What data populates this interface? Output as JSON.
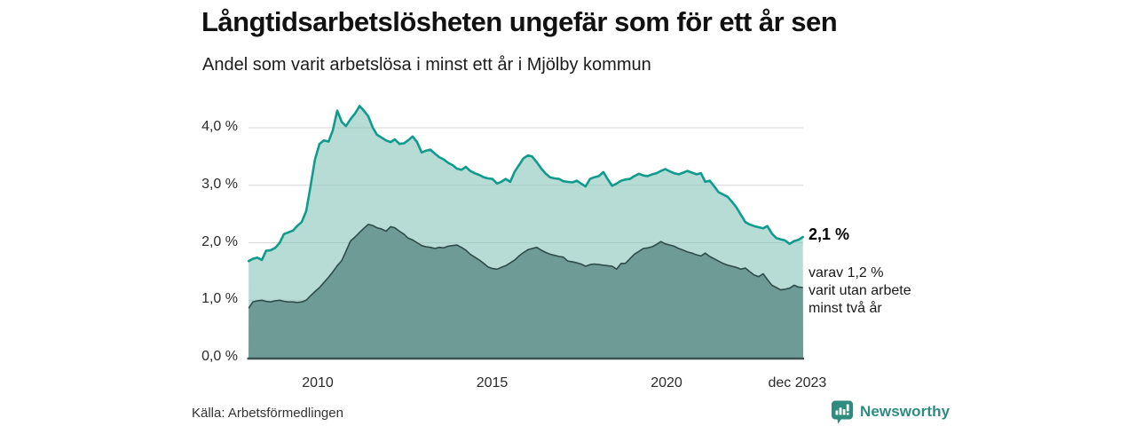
{
  "header": {
    "title": "Långtidsarbetslösheten ungefär som för ett år sen",
    "subtitle": "Andel som varit arbetslösa i minst ett år i Mjölby kommun"
  },
  "annotations": {
    "end_total": "2,1 %",
    "end_sub_lines": [
      "varav 1,2 %",
      "varit utan arbete",
      "minst två år"
    ]
  },
  "source": {
    "label": "Källa: Arbetsförmedlingen"
  },
  "branding": {
    "name": "Newsworthy",
    "icon": "bar-chart-speech-bubble-icon"
  },
  "colors": {
    "accent_line": "#0f9b8e",
    "light_fill": "#8bc7bd",
    "light_fill_opacity": 0.62,
    "dark_fill": "#6e9b96",
    "dark_line": "#2e4c4a",
    "axis": "#3c5350",
    "grid": "#d5d5d5",
    "brand": "#2e8c7f"
  },
  "chart_data": {
    "type": "area",
    "title": "Långtidsarbetslösheten ungefär som för ett år sen",
    "subtitle": "Andel som varit arbetslösa i minst ett år i Mjölby kommun",
    "xlabel": "",
    "ylabel": "",
    "unit": "%",
    "xlim": [
      2008.02,
      2023.92
    ],
    "ylim": [
      0,
      4.5
    ],
    "grid": "horizontal",
    "legend_position": "none",
    "xticks": [
      {
        "year": 2010,
        "label": "2010"
      },
      {
        "year": 2015,
        "label": "2015"
      },
      {
        "year": 2020,
        "label": "2020"
      },
      {
        "year": 2023.75,
        "label": "dec 2023"
      }
    ],
    "yticks": [
      {
        "value": 4,
        "label": "4,0 %"
      },
      {
        "value": 3,
        "label": "3,0 %"
      },
      {
        "value": 2,
        "label": "2,0 %"
      },
      {
        "value": 1,
        "label": "1,0 %"
      },
      {
        "value": 0,
        "label": "0,0 %"
      }
    ],
    "x": [
      2008.02,
      2008.14,
      2008.27,
      2008.4,
      2008.52,
      2008.65,
      2008.78,
      2008.91,
      2009.03,
      2009.16,
      2009.29,
      2009.41,
      2009.54,
      2009.67,
      2009.8,
      2009.92,
      2010.05,
      2010.18,
      2010.31,
      2010.43,
      2010.56,
      2010.69,
      2010.81,
      2010.94,
      2011.07,
      2011.2,
      2011.32,
      2011.45,
      2011.58,
      2011.7,
      2011.83,
      2011.96,
      2012.09,
      2012.21,
      2012.34,
      2012.47,
      2012.59,
      2012.72,
      2012.85,
      2012.98,
      2013.1,
      2013.23,
      2013.36,
      2013.48,
      2013.61,
      2013.74,
      2013.87,
      2013.99,
      2014.12,
      2014.25,
      2014.37,
      2014.5,
      2014.63,
      2014.76,
      2014.88,
      2015.01,
      2015.14,
      2015.26,
      2015.39,
      2015.52,
      2015.65,
      2015.77,
      2015.9,
      2016.03,
      2016.15,
      2016.28,
      2016.41,
      2016.54,
      2016.66,
      2016.79,
      2016.92,
      2017.04,
      2017.17,
      2017.3,
      2017.43,
      2017.55,
      2017.68,
      2017.81,
      2017.93,
      2018.06,
      2018.19,
      2018.32,
      2018.44,
      2018.57,
      2018.7,
      2018.82,
      2018.95,
      2019.08,
      2019.21,
      2019.33,
      2019.46,
      2019.59,
      2019.71,
      2019.84,
      2019.97,
      2020.1,
      2020.22,
      2020.35,
      2020.48,
      2020.6,
      2020.73,
      2020.86,
      2020.99,
      2021.11,
      2021.24,
      2021.37,
      2021.49,
      2021.62,
      2021.75,
      2021.88,
      2022.0,
      2022.13,
      2022.26,
      2022.38,
      2022.51,
      2022.64,
      2022.77,
      2022.89,
      2023.02,
      2023.15,
      2023.27,
      2023.4,
      2023.53,
      2023.66,
      2023.78,
      2023.91
    ],
    "series": [
      {
        "name": "Arbetslösa minst ett år",
        "end_label": "2,1 %",
        "values": [
          1.68,
          1.72,
          1.74,
          1.7,
          1.86,
          1.87,
          1.91,
          2.0,
          2.15,
          2.18,
          2.21,
          2.29,
          2.36,
          2.55,
          3.0,
          3.45,
          3.72,
          3.78,
          3.76,
          3.95,
          4.3,
          4.1,
          4.03,
          4.15,
          4.25,
          4.38,
          4.3,
          4.2,
          4.0,
          3.88,
          3.83,
          3.78,
          3.75,
          3.8,
          3.72,
          3.73,
          3.78,
          3.85,
          3.75,
          3.57,
          3.6,
          3.62,
          3.55,
          3.49,
          3.45,
          3.39,
          3.35,
          3.29,
          3.27,
          3.32,
          3.25,
          3.21,
          3.18,
          3.14,
          3.12,
          3.11,
          3.03,
          3.06,
          3.11,
          3.06,
          3.24,
          3.35,
          3.47,
          3.52,
          3.5,
          3.4,
          3.29,
          3.2,
          3.14,
          3.12,
          3.11,
          3.07,
          3.06,
          3.05,
          3.08,
          3.03,
          2.98,
          3.11,
          3.14,
          3.16,
          3.23,
          3.1,
          2.99,
          3.03,
          3.08,
          3.1,
          3.11,
          3.16,
          3.2,
          3.17,
          3.16,
          3.19,
          3.21,
          3.25,
          3.28,
          3.24,
          3.21,
          3.19,
          3.22,
          3.25,
          3.22,
          3.19,
          3.21,
          3.06,
          3.08,
          2.98,
          2.88,
          2.84,
          2.8,
          2.71,
          2.62,
          2.49,
          2.36,
          2.32,
          2.29,
          2.27,
          2.25,
          2.29,
          2.16,
          2.08,
          2.06,
          2.04,
          1.98,
          2.03,
          2.05,
          2.1
        ]
      },
      {
        "name": "varav utan arbete minst två år",
        "end_label": "1,2 %",
        "values": [
          0.86,
          0.97,
          0.99,
          1.0,
          0.98,
          0.97,
          0.99,
          1.0,
          0.98,
          0.97,
          0.97,
          0.96,
          0.97,
          1.0,
          1.08,
          1.15,
          1.22,
          1.31,
          1.4,
          1.49,
          1.6,
          1.69,
          1.85,
          2.03,
          2.1,
          2.18,
          2.25,
          2.32,
          2.3,
          2.26,
          2.24,
          2.2,
          2.28,
          2.26,
          2.2,
          2.15,
          2.08,
          2.05,
          2.0,
          1.95,
          1.93,
          1.92,
          1.9,
          1.92,
          1.91,
          1.94,
          1.95,
          1.96,
          1.92,
          1.87,
          1.8,
          1.75,
          1.7,
          1.64,
          1.58,
          1.55,
          1.54,
          1.57,
          1.6,
          1.65,
          1.7,
          1.77,
          1.83,
          1.88,
          1.9,
          1.92,
          1.87,
          1.83,
          1.8,
          1.78,
          1.76,
          1.75,
          1.68,
          1.67,
          1.65,
          1.63,
          1.59,
          1.62,
          1.63,
          1.62,
          1.61,
          1.6,
          1.59,
          1.54,
          1.64,
          1.64,
          1.72,
          1.8,
          1.85,
          1.9,
          1.91,
          1.93,
          1.97,
          2.02,
          1.98,
          1.96,
          1.94,
          1.9,
          1.87,
          1.84,
          1.82,
          1.79,
          1.77,
          1.82,
          1.76,
          1.72,
          1.68,
          1.64,
          1.61,
          1.59,
          1.57,
          1.54,
          1.56,
          1.5,
          1.44,
          1.41,
          1.46,
          1.36,
          1.26,
          1.22,
          1.18,
          1.19,
          1.21,
          1.26,
          1.23,
          1.22
        ]
      }
    ]
  }
}
